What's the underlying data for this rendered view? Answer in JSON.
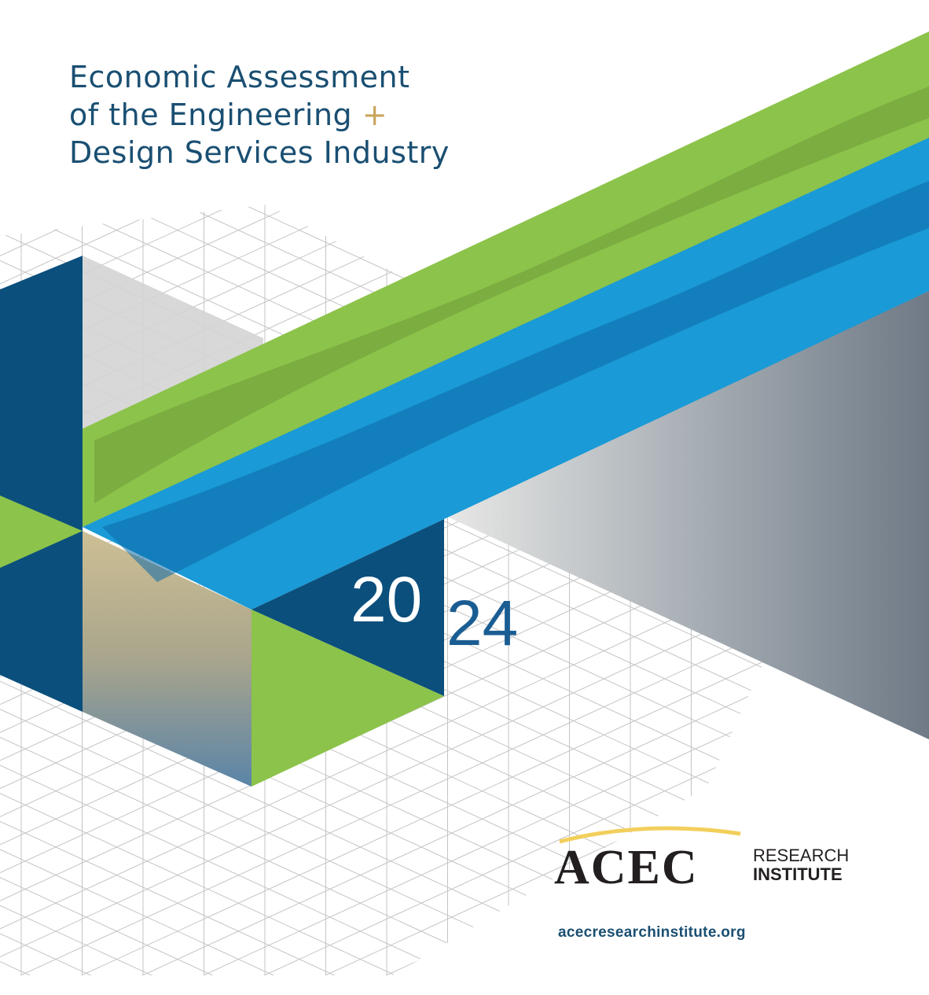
{
  "cover": {
    "title_line1": "Economic Assessment",
    "title_line2": "of the Engineering",
    "title_plus": "+",
    "title_line3": "Design Services Industry",
    "year_part1": "20",
    "year_part2": "24"
  },
  "logo": {
    "acec": "ACEC",
    "research": "RESEARCH",
    "institute": "INSTITUTE"
  },
  "footer": {
    "url": "acecresearchinstitute.org"
  },
  "colors": {
    "navy": "#0b4f7c",
    "green": "#8cc34a",
    "blue": "#1a9ad6",
    "title_text": "#1a4f72",
    "plus_gold": "#c9a45c",
    "logo_arc": "#f2cf5b"
  }
}
